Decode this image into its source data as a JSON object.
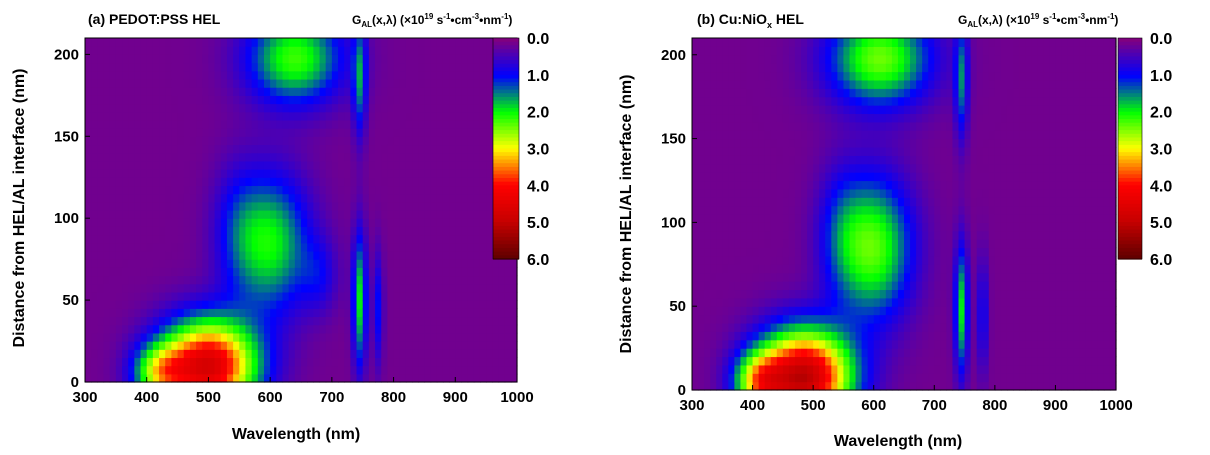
{
  "chart_data": [
    {
      "type": "heatmap",
      "panel_label": "(a) PEDOT:PSS HEL",
      "xlabel": "Wavelength (nm)",
      "ylabel": "Distance from HEL/AL interface (nm)",
      "xlim": [
        300,
        1000
      ],
      "ylim": [
        0,
        210
      ],
      "xticks": [
        300,
        400,
        500,
        600,
        700,
        800,
        900,
        1000
      ],
      "yticks": [
        0,
        50,
        100,
        150,
        200
      ],
      "colorbar": {
        "title_prefix": "G",
        "title_sub": "AL",
        "title_mid": "(x,λ) (×10",
        "title_exp1": "19",
        "title_u1": " s",
        "title_exp2": "-1",
        "title_u2": "•cm",
        "title_exp3": "-3",
        "title_u3": "•nm",
        "title_exp4": "-1",
        "title_end": ")",
        "ticks": [
          "0.0",
          "1.0",
          "2.0",
          "3.0",
          "4.0",
          "5.0",
          "6.0"
        ],
        "range": [
          0,
          6
        ]
      },
      "blobs": [
        {
          "x": 500,
          "y": 10,
          "sx": 55,
          "sy": 20,
          "a": 4.6
        },
        {
          "x": 420,
          "y": 6,
          "sx": 30,
          "sy": 12,
          "a": 1.8
        },
        {
          "x": 600,
          "y": 85,
          "sx": 45,
          "sy": 30,
          "a": 1.9
        },
        {
          "x": 680,
          "y": 65,
          "sx": 22,
          "sy": 16,
          "a": 0.6
        },
        {
          "x": 545,
          "y": 95,
          "sx": 28,
          "sy": 28,
          "a": 0.5
        },
        {
          "x": 745,
          "y": 50,
          "sx": 8,
          "sy": 30,
          "a": 1.8
        },
        {
          "x": 640,
          "y": 198,
          "sx": 55,
          "sy": 20,
          "a": 2.1
        },
        {
          "x": 745,
          "y": 185,
          "sx": 8,
          "sy": 25,
          "a": 1.3
        },
        {
          "x": 775,
          "y": 45,
          "sx": 6,
          "sy": 25,
          "a": 0.9
        }
      ]
    },
    {
      "type": "heatmap",
      "panel_label_main": "(b) Cu:NiO",
      "panel_label_sub": "x",
      "panel_label_end": " HEL",
      "xlabel": "Wavelength (nm)",
      "ylabel": "Distance from HEL/AL interface (nm)",
      "xlim": [
        300,
        1000
      ],
      "ylim": [
        0,
        210
      ],
      "xticks": [
        300,
        400,
        500,
        600,
        700,
        800,
        900,
        1000
      ],
      "yticks": [
        0,
        50,
        100,
        150,
        200
      ],
      "colorbar": {
        "title_prefix": "G",
        "title_sub": "AL",
        "title_mid": "(x,λ) (×10",
        "title_exp1": "19",
        "title_u1": " s",
        "title_exp2": "-1",
        "title_u2": "•cm",
        "title_exp3": "-3",
        "title_u3": "•nm",
        "title_exp4": "-1",
        "title_end": ")",
        "ticks": [
          "0.0",
          "1.0",
          "2.0",
          "3.0",
          "4.0",
          "5.0",
          "6.0"
        ],
        "range": [
          0,
          6
        ]
      },
      "blobs": [
        {
          "x": 485,
          "y": 8,
          "sx": 55,
          "sy": 20,
          "a": 5.0
        },
        {
          "x": 410,
          "y": 5,
          "sx": 28,
          "sy": 12,
          "a": 2.0
        },
        {
          "x": 600,
          "y": 85,
          "sx": 45,
          "sy": 30,
          "a": 2.2
        },
        {
          "x": 545,
          "y": 95,
          "sx": 28,
          "sy": 28,
          "a": 0.6
        },
        {
          "x": 745,
          "y": 48,
          "sx": 8,
          "sy": 28,
          "a": 1.8
        },
        {
          "x": 610,
          "y": 198,
          "sx": 60,
          "sy": 20,
          "a": 2.3
        },
        {
          "x": 745,
          "y": 185,
          "sx": 8,
          "sy": 25,
          "a": 1.3
        },
        {
          "x": 780,
          "y": 45,
          "sx": 6,
          "sy": 25,
          "a": 0.9
        }
      ]
    }
  ]
}
